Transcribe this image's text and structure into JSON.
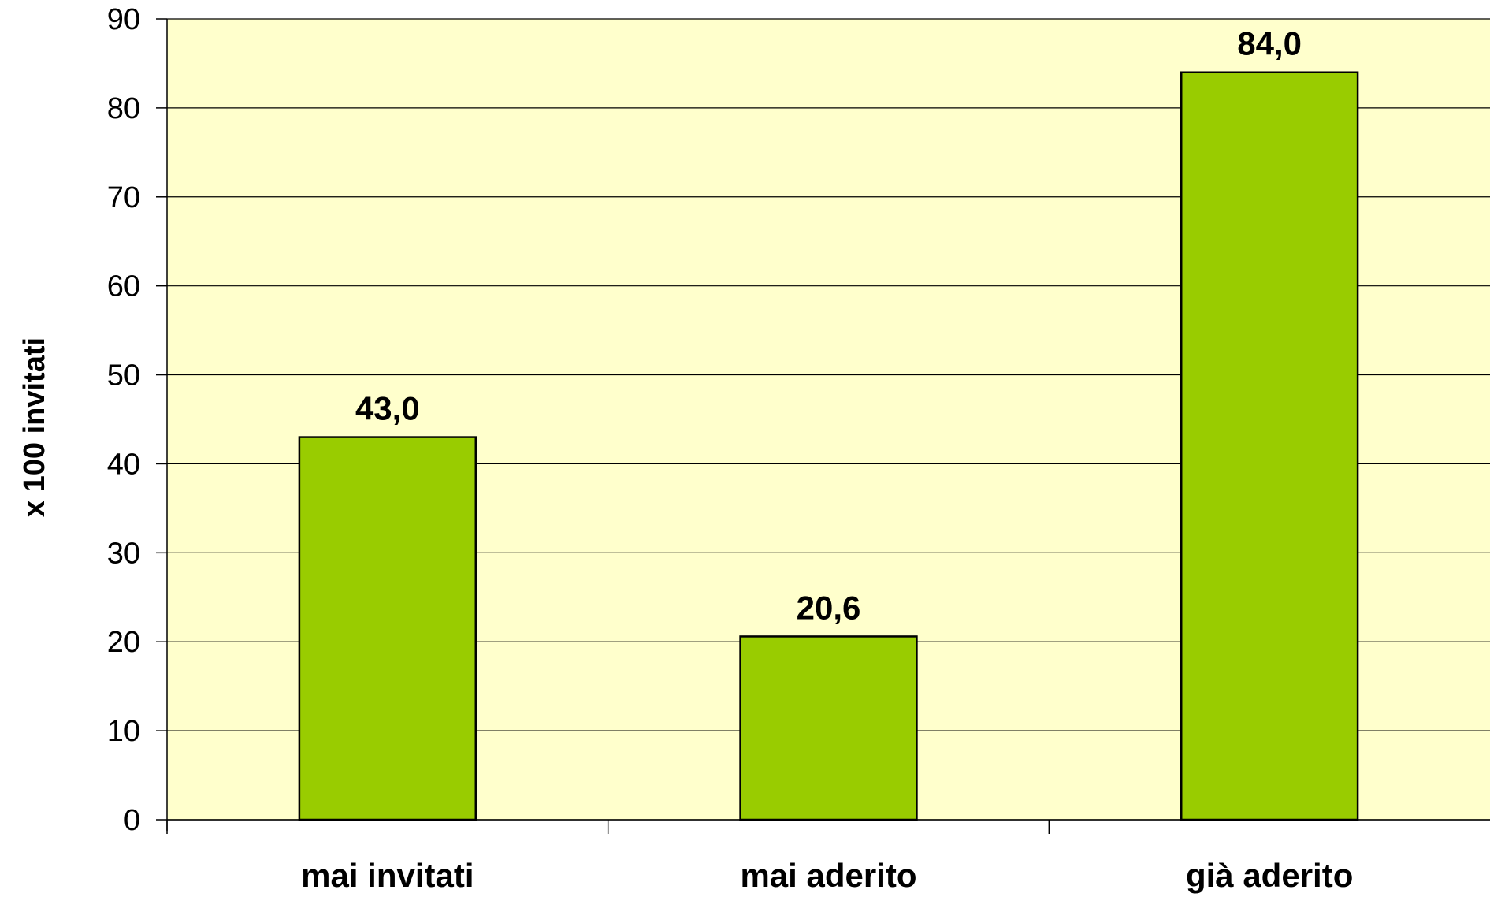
{
  "chart_data": {
    "type": "bar",
    "title": "",
    "xlabel": "",
    "ylabel": "x 100 invitati",
    "categories": [
      "mai invitati",
      "mai aderito",
      "già aderito"
    ],
    "values": [
      43.0,
      20.6,
      84.0
    ],
    "data_labels": [
      "43,0",
      "20,6",
      "84,0"
    ],
    "ylim": [
      0,
      90
    ],
    "yticks": [
      0,
      10,
      20,
      30,
      40,
      50,
      60,
      70,
      80,
      90
    ],
    "grid": true,
    "legend": "none",
    "colors": {
      "plot_background": "#FFFFCC",
      "bar_fill": "#99CC00",
      "bar_stroke": "#000000",
      "gridline": "#000000",
      "axis": "#000000"
    }
  }
}
